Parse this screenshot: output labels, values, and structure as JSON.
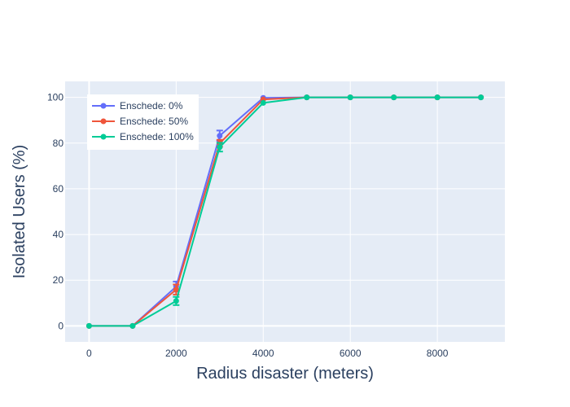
{
  "chart_data": {
    "type": "line",
    "xlabel": "Radius disaster (meters)",
    "ylabel": "Isolated Users (%)",
    "xlim": [
      -550,
      9550
    ],
    "ylim": [
      -7,
      107
    ],
    "x_ticks": [
      0,
      2000,
      4000,
      6000,
      8000
    ],
    "y_ticks": [
      0,
      20,
      40,
      60,
      80,
      100
    ],
    "grid": true,
    "legend_position": "top-left",
    "x": [
      0,
      1000,
      2000,
      3000,
      4000,
      5000,
      6000,
      7000,
      8000,
      9000
    ],
    "series": [
      {
        "name": "Enschede: 0%",
        "color": "#636efa",
        "values": [
          0,
          0,
          17.2,
          83.2,
          99.8,
          100,
          100,
          100,
          100,
          100
        ],
        "error": [
          0,
          0,
          2.2,
          2.3,
          0,
          0,
          0,
          0,
          0,
          0
        ]
      },
      {
        "name": "Enschede: 50%",
        "color": "#ef553b",
        "values": [
          0,
          0,
          15.9,
          79.9,
          99.1,
          100,
          100,
          100,
          100,
          100
        ],
        "error": [
          0,
          0,
          2.2,
          1.5,
          0,
          0,
          0,
          0,
          0,
          0
        ]
      },
      {
        "name": "Enschede: 100%",
        "color": "#00cc96",
        "values": [
          0,
          0,
          10.9,
          78.2,
          97.6,
          100,
          100,
          100,
          100,
          100
        ],
        "error": [
          0,
          0,
          1.8,
          1.9,
          0,
          0,
          0,
          0,
          0,
          0
        ]
      }
    ]
  }
}
